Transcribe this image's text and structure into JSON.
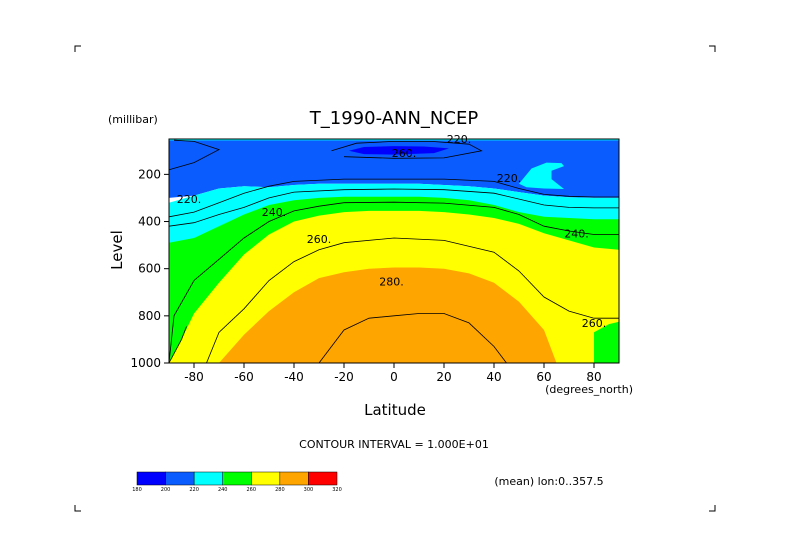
{
  "chart_data": {
    "type": "contour",
    "title": "T_1990-ANN_NCEP",
    "xlabel": "Latitude",
    "xunit": "(degrees_north)",
    "ylabel": "Level",
    "yunit": "(millibar)",
    "xlim": [
      -90,
      90
    ],
    "ylim": [
      1000,
      0
    ],
    "xticks": [
      "-80",
      "-60",
      "-40",
      "-20",
      "0",
      "20",
      "40",
      "60",
      "80"
    ],
    "xtick_values": [
      -80,
      -60,
      -40,
      -20,
      0,
      20,
      40,
      60,
      80
    ],
    "yticks": [
      "200",
      "400",
      "600",
      "800",
      "1000"
    ],
    "ytick_values": [
      200,
      400,
      600,
      800,
      1000
    ],
    "contour_interval_text": "CONTOUR INTERVAL = 1.000E+01",
    "mean_text": "(mean) lon:0..357.5",
    "colorbar": {
      "labels": [
        "180",
        "200",
        "220",
        "240",
        "260",
        "280",
        "300",
        "320"
      ],
      "colors": [
        "#0000ff",
        "#0a5cff",
        "#00ffff",
        "#00ff00",
        "#ffff00",
        "#ffa500",
        "#ff0000"
      ]
    },
    "regions": [
      {
        "color": "#0a5cff",
        "points": [
          [
            -90,
            50
          ],
          [
            90,
            50
          ],
          [
            90,
            300
          ],
          [
            80,
            300
          ],
          [
            70,
            297
          ],
          [
            60,
            290
          ],
          [
            50,
            275
          ],
          [
            40,
            260
          ],
          [
            30,
            250
          ],
          [
            20,
            245
          ],
          [
            10,
            240
          ],
          [
            0,
            240
          ],
          [
            -10,
            240
          ],
          [
            -20,
            240
          ],
          [
            -30,
            240
          ],
          [
            -40,
            245
          ],
          [
            -50,
            255
          ],
          [
            -60,
            250
          ],
          [
            -70,
            260
          ],
          [
            -80,
            290
          ],
          [
            -90,
            300
          ]
        ]
      },
      {
        "color": "#00ffff",
        "points": [
          [
            -90,
            320
          ],
          [
            -80,
            290
          ],
          [
            -70,
            260
          ],
          [
            -60,
            250
          ],
          [
            -50,
            255
          ],
          [
            -40,
            245
          ],
          [
            -30,
            240
          ],
          [
            -20,
            240
          ],
          [
            -10,
            240
          ],
          [
            0,
            240
          ],
          [
            10,
            240
          ],
          [
            20,
            245
          ],
          [
            30,
            250
          ],
          [
            40,
            260
          ],
          [
            50,
            275
          ],
          [
            60,
            290
          ],
          [
            70,
            297
          ],
          [
            80,
            300
          ],
          [
            90,
            300
          ],
          [
            90,
            1000
          ],
          [
            -90,
            1000
          ]
        ]
      },
      {
        "color": "#00ff00",
        "points": [
          [
            -90,
            490
          ],
          [
            -80,
            470
          ],
          [
            -70,
            420
          ],
          [
            -60,
            370
          ],
          [
            -50,
            330
          ],
          [
            -40,
            310
          ],
          [
            -30,
            300
          ],
          [
            -20,
            295
          ],
          [
            -10,
            295
          ],
          [
            0,
            295
          ],
          [
            10,
            295
          ],
          [
            20,
            300
          ],
          [
            30,
            310
          ],
          [
            40,
            330
          ],
          [
            50,
            360
          ],
          [
            60,
            380
          ],
          [
            70,
            385
          ],
          [
            80,
            390
          ],
          [
            90,
            390
          ],
          [
            90,
            1000
          ],
          [
            -90,
            1000
          ]
        ]
      },
      {
        "color": "#ffff00",
        "points": [
          [
            -90,
            1000
          ],
          [
            -85,
            900
          ],
          [
            -80,
            790
          ],
          [
            -70,
            660
          ],
          [
            -60,
            540
          ],
          [
            -50,
            455
          ],
          [
            -40,
            400
          ],
          [
            -30,
            375
          ],
          [
            -20,
            360
          ],
          [
            -10,
            355
          ],
          [
            0,
            355
          ],
          [
            10,
            355
          ],
          [
            20,
            360
          ],
          [
            30,
            370
          ],
          [
            40,
            385
          ],
          [
            50,
            410
          ],
          [
            60,
            450
          ],
          [
            70,
            480
          ],
          [
            80,
            510
          ],
          [
            90,
            520
          ],
          [
            90,
            1000
          ]
        ]
      },
      {
        "color": "#ffa500",
        "points": [
          [
            -70,
            1000
          ],
          [
            -60,
            880
          ],
          [
            -50,
            780
          ],
          [
            -40,
            700
          ],
          [
            -30,
            640
          ],
          [
            -20,
            615
          ],
          [
            -10,
            600
          ],
          [
            0,
            595
          ],
          [
            10,
            595
          ],
          [
            20,
            600
          ],
          [
            30,
            620
          ],
          [
            40,
            660
          ],
          [
            50,
            740
          ],
          [
            60,
            860
          ],
          [
            65,
            1000
          ]
        ]
      },
      {
        "color": "#00ff00",
        "points": [
          [
            80,
            870
          ],
          [
            86,
            835
          ],
          [
            90,
            825
          ],
          [
            90,
            1000
          ],
          [
            80,
            1000
          ]
        ]
      },
      {
        "color": "#00ffff",
        "points": [
          [
            50,
            240
          ],
          [
            55,
            175
          ],
          [
            61,
            150
          ],
          [
            67,
            152
          ],
          [
            68,
            165
          ],
          [
            63,
            185
          ],
          [
            63,
            220
          ],
          [
            68,
            262
          ],
          [
            60,
            260
          ],
          [
            53,
            255
          ]
        ]
      },
      {
        "color": "#00ffff",
        "points": [
          [
            -90,
            50
          ],
          [
            90,
            50
          ],
          [
            90,
            56
          ],
          [
            -90,
            56
          ]
        ]
      },
      {
        "color": "#0000ff",
        "points": [
          [
            -18,
            100
          ],
          [
            -12,
            84
          ],
          [
            0,
            80
          ],
          [
            12,
            82
          ],
          [
            22,
            90
          ],
          [
            16,
            110
          ],
          [
            0,
            116
          ],
          [
            -12,
            114
          ]
        ]
      }
    ],
    "contours": [
      {
        "level": 220,
        "points": [
          [
            -90,
            380
          ],
          [
            -80,
            360
          ],
          [
            -70,
            320
          ],
          [
            -60,
            280
          ],
          [
            -50,
            250
          ],
          [
            -40,
            230
          ],
          [
            -20,
            220
          ],
          [
            0,
            220
          ],
          [
            20,
            220
          ],
          [
            40,
            230
          ],
          [
            50,
            260
          ],
          [
            60,
            285
          ],
          [
            70,
            293
          ],
          [
            80,
            296
          ],
          [
            90,
            296
          ]
        ]
      },
      {
        "level": 230,
        "points": [
          [
            -90,
            420
          ],
          [
            -80,
            405
          ],
          [
            -70,
            370
          ],
          [
            -60,
            340
          ],
          [
            -50,
            300
          ],
          [
            -40,
            275
          ],
          [
            -20,
            265
          ],
          [
            0,
            262
          ],
          [
            20,
            265
          ],
          [
            40,
            280
          ],
          [
            60,
            330
          ],
          [
            70,
            340
          ],
          [
            80,
            342
          ],
          [
            90,
            342
          ]
        ]
      },
      {
        "level": 250,
        "points": [
          [
            -90,
            1000
          ],
          [
            -88,
            800
          ],
          [
            -80,
            650
          ],
          [
            -70,
            560
          ],
          [
            -60,
            470
          ],
          [
            -50,
            400
          ],
          [
            -40,
            355
          ],
          [
            -30,
            335
          ],
          [
            -20,
            320
          ],
          [
            0,
            318
          ],
          [
            20,
            322
          ],
          [
            40,
            340
          ],
          [
            50,
            370
          ],
          [
            60,
            420
          ],
          [
            70,
            440
          ],
          [
            80,
            455
          ],
          [
            90,
            455
          ]
        ]
      },
      {
        "level": 270,
        "points": [
          [
            -75,
            1000
          ],
          [
            -70,
            870
          ],
          [
            -60,
            770
          ],
          [
            -50,
            650
          ],
          [
            -40,
            570
          ],
          [
            -30,
            520
          ],
          [
            -20,
            490
          ],
          [
            0,
            470
          ],
          [
            20,
            480
          ],
          [
            40,
            530
          ],
          [
            50,
            610
          ],
          [
            60,
            720
          ],
          [
            70,
            780
          ],
          [
            80,
            810
          ],
          [
            90,
            810
          ]
        ]
      },
      {
        "level": 290,
        "points": [
          [
            -30,
            1000
          ],
          [
            -20,
            860
          ],
          [
            -10,
            810
          ],
          [
            0,
            800
          ],
          [
            10,
            790
          ],
          [
            20,
            790
          ],
          [
            30,
            830
          ],
          [
            40,
            930
          ],
          [
            45,
            1000
          ]
        ]
      },
      {
        "level": 260,
        "points": [
          [
            -25,
            100
          ],
          [
            -15,
            68
          ],
          [
            0,
            60
          ],
          [
            15,
            60
          ],
          [
            30,
            72
          ],
          [
            35,
            100
          ],
          [
            20,
            130
          ],
          [
            0,
            132
          ],
          [
            -20,
            125
          ]
        ]
      },
      {
        "level": 210,
        "points": [
          [
            -90,
            180
          ],
          [
            -80,
            150
          ],
          [
            -70,
            95
          ],
          [
            -80,
            60
          ],
          [
            -88,
            55
          ]
        ]
      },
      {
        "level": 230,
        "points": [
          [
            -90,
            1000
          ],
          [
            -85,
            900
          ],
          [
            -83,
            845
          ]
        ]
      }
    ],
    "contour_labels": [
      {
        "text": "220.",
        "x": -82,
        "y": 305
      },
      {
        "text": "240.",
        "x": -48,
        "y": 360
      },
      {
        "text": "260.",
        "x": -30,
        "y": 475
      },
      {
        "text": "280.",
        "x": -1,
        "y": 655
      },
      {
        "text": "240.",
        "x": 73,
        "y": 450
      },
      {
        "text": "260.",
        "x": 80,
        "y": 830
      },
      {
        "text": "220.",
        "x": 46,
        "y": 215
      },
      {
        "text": "260.",
        "x": 4,
        "y": 110
      },
      {
        "text": "220.",
        "x": 26,
        "y": 50
      }
    ]
  }
}
